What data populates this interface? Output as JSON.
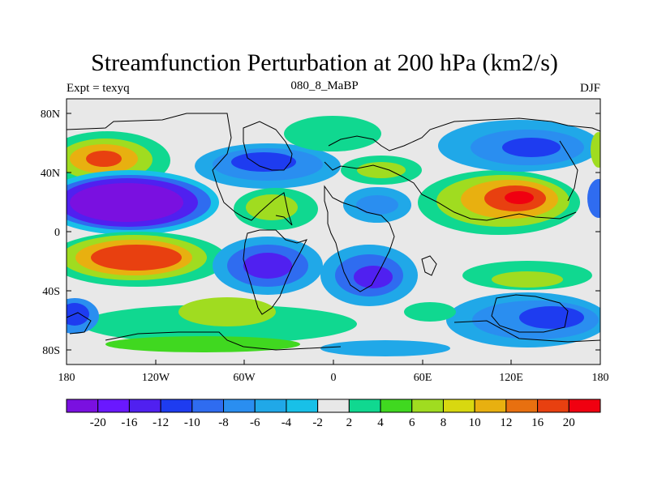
{
  "title": "Streamfunction Perturbation at 200 hPa (km2/s)",
  "subtitle_left": "Expt = texyq",
  "subtitle_center": "080_8_MaBP",
  "subtitle_right": "DJF",
  "map": {
    "lat_ticks": [
      "80N",
      "40N",
      "0",
      "40S",
      "80S"
    ],
    "lon_ticks": [
      "180",
      "120W",
      "60W",
      "0",
      "60E",
      "120E",
      "180"
    ]
  },
  "colorbar": {
    "colors": [
      "#7a10e0",
      "#6a18ff",
      "#5020f0",
      "#1e3cf0",
      "#2f6cf0",
      "#2a8ef0",
      "#20a8e8",
      "#18c0e8",
      "#e8e8e8",
      "#10d890",
      "#40d820",
      "#a0dc20",
      "#d8d810",
      "#e8b010",
      "#e87010",
      "#e84010",
      "#f00010"
    ],
    "labels": [
      "-20",
      "-16",
      "-12",
      "-10",
      "-8",
      "-6",
      "-4",
      "-2",
      "2",
      "4",
      "6",
      "8",
      "10",
      "12",
      "16",
      "20"
    ]
  }
}
